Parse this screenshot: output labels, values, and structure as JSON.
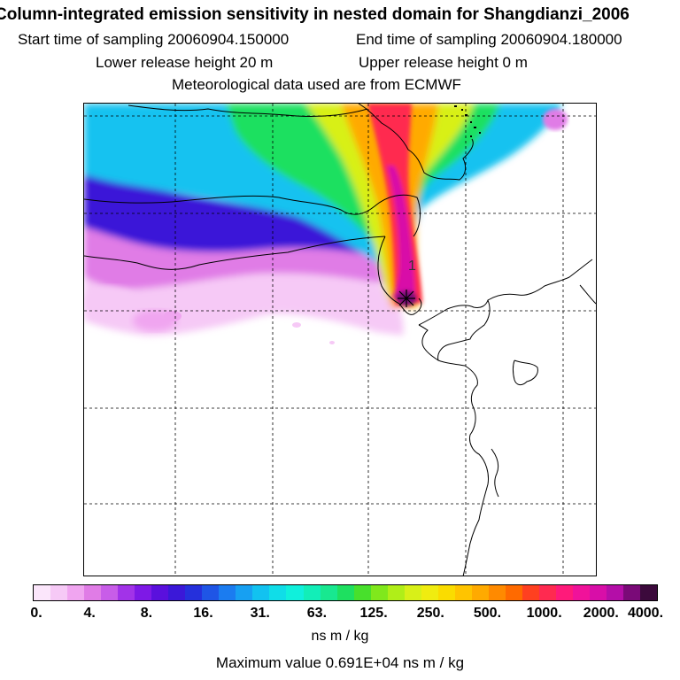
{
  "header": {
    "title": "Column-integrated emission sensitivity in nested domain for Shangdianzi_2006",
    "start_label": "Start time of sampling 20060904.150000",
    "end_label": "End time of sampling 20060904.180000",
    "lower_label": "Lower release height   20 m",
    "upper_label": "Upper release height    0 m",
    "met_label": "Meteorological data used are from ECMWF"
  },
  "map": {
    "receptor_marker": "1",
    "grid": "dashed lat/lon lines"
  },
  "legend": {
    "ticks": [
      "0.",
      "4.",
      "8.",
      "16.",
      "31.",
      "63.",
      "125.",
      "250.",
      "500.",
      "1000.",
      "2000.",
      "4000."
    ],
    "colors": [
      "#fbe6fb",
      "#f6c9f6",
      "#f0a5f0",
      "#e07ce6",
      "#c85de8",
      "#a233e8",
      "#7e19e6",
      "#5a10dd",
      "#3b18d8",
      "#2530dc",
      "#1f55e6",
      "#1b7cf0",
      "#17a0f2",
      "#12c2f0",
      "#10dde8",
      "#10f0dc",
      "#12eeb8",
      "#18e890",
      "#1ee060",
      "#48e02c",
      "#80e81c",
      "#b0ee18",
      "#d8f018",
      "#f0ec10",
      "#fadc00",
      "#ffc400",
      "#ffaa00",
      "#ff8a00",
      "#ff6a00",
      "#ff4020",
      "#ff2a50",
      "#ff1a7a",
      "#f0129a",
      "#d80ea8",
      "#b40ea8",
      "#7a0a78",
      "#3c0a3c"
    ],
    "units": "ns m / kg",
    "max_value_text": "Maximum value  0.691E+04 ns m / kg"
  }
}
